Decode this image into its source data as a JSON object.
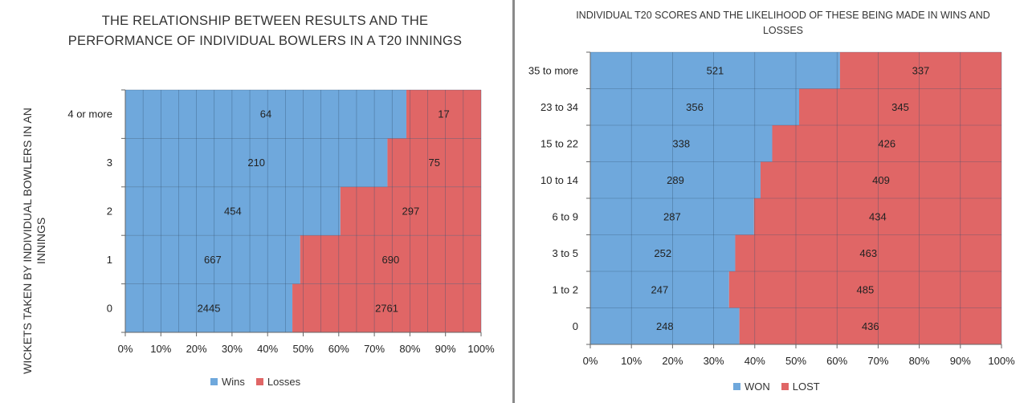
{
  "colors": {
    "won": "#6fa8dc",
    "lost": "#e06666",
    "grid": "#2f4f6f",
    "border": "#8a8a8a"
  },
  "chart_data": [
    {
      "type": "bar",
      "orientation": "horizontal",
      "stacked": "percent",
      "title": "THE RELATIONSHIP BETWEEN RESULTS AND THE PERFORMANCE OF INDIVIDUAL BOWLERS IN A T20 INNINGS",
      "ylabel": "WICKETS TAKEN  BY INDIVIDUAL BOWLERS IN AN INNINGS",
      "xlabel": "",
      "categories": [
        "4 or more",
        "3",
        "2",
        "1",
        "0"
      ],
      "series": [
        {
          "name": "Wins",
          "values": [
            64,
            210,
            454,
            667,
            2445
          ]
        },
        {
          "name": "Losses",
          "values": [
            17,
            75,
            297,
            690,
            2761
          ]
        }
      ],
      "xticks": [
        "0%",
        "10%",
        "20%",
        "30%",
        "40%",
        "50%",
        "60%",
        "70%",
        "80%",
        "90%",
        "100%"
      ],
      "xlim": [
        0,
        100
      ],
      "legend": "bottom",
      "grid": true
    },
    {
      "type": "bar",
      "orientation": "horizontal",
      "stacked": "percent",
      "title": "INDIVIDUAL T20 SCORES AND THE LIKELIHOOD OF THESE BEING MADE IN WINS AND LOSSES",
      "xlabel": "",
      "ylabel": "",
      "categories": [
        "35 to more",
        "23 to 34",
        "15 to 22",
        "10 to 14",
        "6 to 9",
        "3 to 5",
        "1 to 2",
        "0"
      ],
      "series": [
        {
          "name": "WON",
          "values": [
            521,
            356,
            338,
            289,
            287,
            252,
            247,
            248
          ]
        },
        {
          "name": "LOST",
          "values": [
            337,
            345,
            426,
            409,
            434,
            463,
            485,
            436
          ]
        }
      ],
      "xticks": [
        "0%",
        "10%",
        "20%",
        "30%",
        "40%",
        "50%",
        "60%",
        "70%",
        "80%",
        "90%",
        "100%"
      ],
      "xlim": [
        0,
        100
      ],
      "legend": "bottom",
      "grid": true
    }
  ]
}
